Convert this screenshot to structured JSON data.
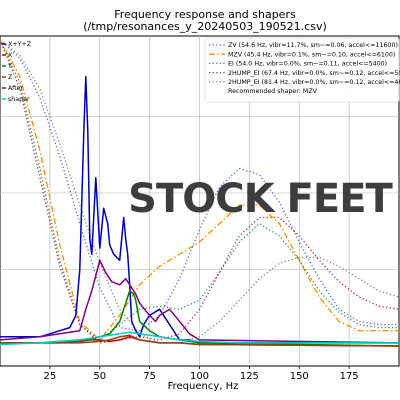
{
  "chart_data": {
    "type": "line",
    "title": "Frequency response and shapers",
    "subtitle": "(/tmp/resonances_y_20240503_190521.csv)",
    "xlabel": "Frequency, Hz",
    "ylabel": "",
    "xlim": [
      0,
      200
    ],
    "ylim": [
      0,
      1.0
    ],
    "y2lim": [
      0,
      1.0
    ],
    "x_ticks": [
      25,
      50,
      75,
      100,
      125,
      150,
      175
    ],
    "grid": true,
    "legend_left_placement": "top-left",
    "legend_right_placement": "top-right",
    "overlay_text": "STOCK FEET",
    "legend_left_title": "",
    "legend_right_footer": "Recommended shaper: MZV",
    "series": [
      {
        "name": "X+Y+Z",
        "color": "#0000b0",
        "style": "solid",
        "axis": "left",
        "x": [
          0,
          20,
          25,
          30,
          35,
          38,
          40,
          42,
          43,
          44,
          45,
          46,
          48,
          50,
          52,
          54,
          55,
          57,
          60,
          62,
          63,
          64,
          65,
          66,
          68,
          70,
          72,
          75,
          80,
          85,
          88,
          90,
          95,
          100,
          200
        ],
        "y": [
          0.03,
          0.03,
          0.04,
          0.05,
          0.06,
          0.1,
          0.25,
          0.7,
          0.88,
          0.7,
          0.35,
          0.3,
          0.55,
          0.32,
          0.45,
          0.4,
          0.33,
          0.3,
          0.28,
          0.42,
          0.35,
          0.3,
          0.2,
          0.08,
          0.05,
          0.03,
          0.07,
          0.1,
          0.12,
          0.07,
          0.04,
          0.02,
          0.02,
          0.01,
          0.01
        ]
      },
      {
        "name": "X",
        "color": "#cc0000",
        "style": "solid",
        "axis": "left",
        "x": [
          0,
          20,
          30,
          40,
          45,
          50,
          55,
          60,
          65,
          70,
          80,
          90,
          100,
          200
        ],
        "y": [
          0.01,
          0.01,
          0.01,
          0.015,
          0.02,
          0.02,
          0.015,
          0.02,
          0.03,
          0.02,
          0.01,
          0.01,
          0.005,
          0.0
        ]
      },
      {
        "name": "Y",
        "color": "#008000",
        "style": "solid",
        "axis": "left",
        "x": [
          0,
          20,
          40,
          45,
          50,
          55,
          60,
          62,
          65,
          67,
          68,
          70,
          75,
          80,
          90,
          100,
          200
        ],
        "y": [
          0.01,
          0.01,
          0.02,
          0.02,
          0.03,
          0.04,
          0.08,
          0.12,
          0.18,
          0.17,
          0.15,
          0.08,
          0.05,
          0.03,
          0.02,
          0.01,
          0.0
        ]
      },
      {
        "name": "Z",
        "color": "#8b4513",
        "style": "solid",
        "axis": "left",
        "x": [
          0,
          20,
          40,
          50,
          55,
          60,
          65,
          70,
          80,
          90,
          100,
          200
        ],
        "y": [
          0.01,
          0.01,
          0.01,
          0.015,
          0.02,
          0.03,
          0.035,
          0.02,
          0.01,
          0.01,
          0.005,
          0.0
        ]
      },
      {
        "name": "After",
        "color": "#800080",
        "style": "solid",
        "axis": "left",
        "x": [
          0,
          20,
          40,
          43,
          46,
          50,
          53,
          56,
          60,
          63,
          65,
          68,
          70,
          75,
          78,
          80,
          85,
          90,
          95,
          100,
          200
        ],
        "y": [
          0.02,
          0.03,
          0.05,
          0.12,
          0.18,
          0.28,
          0.24,
          0.21,
          0.2,
          0.22,
          0.2,
          0.17,
          0.14,
          0.1,
          0.08,
          0.1,
          0.12,
          0.08,
          0.04,
          0.02,
          0.01
        ]
      },
      {
        "name": "shaper",
        "color": "#00cccc",
        "style": "solid",
        "axis": "left",
        "x": [
          0,
          20,
          30,
          40,
          45,
          50,
          55,
          60,
          65,
          70,
          75,
          80,
          90,
          100,
          120,
          150,
          200
        ],
        "y": [
          0.005,
          0.01,
          0.015,
          0.02,
          0.025,
          0.03,
          0.035,
          0.04,
          0.045,
          0.04,
          0.035,
          0.03,
          0.02,
          0.015,
          0.01,
          0.01,
          0.01
        ]
      },
      {
        "name": "ZV (54.6 Hz, vibr=11.7%, sm~=0.06, accel<=11600)",
        "color": "#4169e1",
        "style": "dotted",
        "axis": "right",
        "x": [
          0,
          10,
          20,
          30,
          40,
          50,
          60,
          70,
          80,
          90,
          100,
          110,
          120,
          130,
          140,
          150,
          160,
          170,
          180,
          190,
          200
        ],
        "y": [
          1.0,
          0.94,
          0.81,
          0.62,
          0.4,
          0.19,
          0.06,
          0.05,
          0.1,
          0.22,
          0.38,
          0.52,
          0.58,
          0.56,
          0.47,
          0.34,
          0.22,
          0.12,
          0.08,
          0.07,
          0.07
        ]
      },
      {
        "name": "MZV (45.4 Hz, vibr=0.1%, sm~=0.10, accel<=6100)",
        "color": "#ff8c00",
        "style": "dashdot",
        "axis": "right",
        "x": [
          0,
          10,
          20,
          30,
          40,
          50,
          60,
          70,
          80,
          90,
          100,
          110,
          120,
          130,
          140,
          150,
          160,
          170,
          180,
          190,
          200
        ],
        "y": [
          1.0,
          0.88,
          0.64,
          0.33,
          0.08,
          0.02,
          0.1,
          0.2,
          0.26,
          0.3,
          0.34,
          0.4,
          0.46,
          0.46,
          0.4,
          0.28,
          0.16,
          0.08,
          0.05,
          0.05,
          0.05
        ]
      },
      {
        "name": "EI (54.0 Hz, vibr=0.0%, sm~=0.11, accel<=5400)",
        "color": "#2e8b57",
        "style": "dotted",
        "axis": "right",
        "x": [
          0,
          10,
          20,
          30,
          40,
          50,
          60,
          70,
          80,
          90,
          100,
          110,
          120,
          130,
          140,
          150,
          160,
          170,
          180,
          190,
          200
        ],
        "y": [
          1.0,
          0.86,
          0.58,
          0.28,
          0.07,
          0.02,
          0.07,
          0.12,
          0.13,
          0.12,
          0.15,
          0.24,
          0.34,
          0.4,
          0.36,
          0.28,
          0.18,
          0.11,
          0.07,
          0.06,
          0.06
        ]
      },
      {
        "name": "2HUMP_EI (67.4 Hz, vibr=0.0%, sm~=0.12, accel<=5000)",
        "color": "#b22222",
        "style": "dotted",
        "axis": "right",
        "x": [
          0,
          10,
          20,
          30,
          40,
          50,
          60,
          70,
          80,
          90,
          100,
          110,
          120,
          130,
          140,
          150,
          160,
          170,
          180,
          190,
          200
        ],
        "y": [
          1.0,
          0.84,
          0.55,
          0.26,
          0.07,
          0.01,
          0.02,
          0.03,
          0.02,
          0.04,
          0.12,
          0.24,
          0.36,
          0.42,
          0.42,
          0.36,
          0.28,
          0.21,
          0.16,
          0.13,
          0.12
        ]
      },
      {
        "name": "2HUMP_EI (81.4 Hz, vibr=0.0%, sm~=0.12, accel<=4600)",
        "color": "#808080",
        "style": "dotted",
        "axis": "right",
        "x": [
          0,
          10,
          20,
          30,
          40,
          50,
          60,
          70,
          80,
          90,
          100,
          110,
          120,
          130,
          140,
          150,
          160,
          170,
          180,
          190,
          200
        ],
        "y": [
          1.0,
          0.95,
          0.84,
          0.66,
          0.46,
          0.27,
          0.12,
          0.04,
          0.01,
          0.01,
          0.03,
          0.08,
          0.15,
          0.22,
          0.27,
          0.29,
          0.29,
          0.26,
          0.22,
          0.18,
          0.16
        ]
      }
    ]
  }
}
